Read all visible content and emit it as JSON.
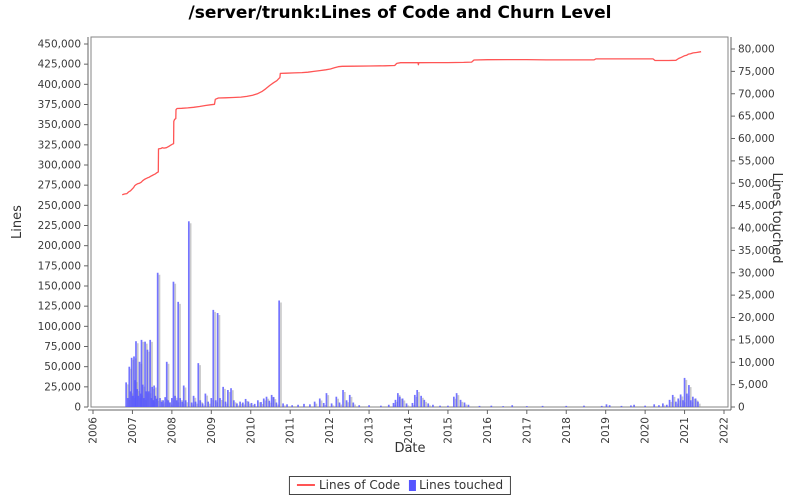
{
  "title": "/server/trunk:Lines of Code and Churn Level",
  "axis_titles": {
    "left": "Lines",
    "right": "Lines touched",
    "x": "Date"
  },
  "legend": {
    "items": [
      {
        "label": "Lines of Code",
        "swatch": "line",
        "color": "#ff5555"
      },
      {
        "label": "Lines touched",
        "swatch": "square",
        "color": "#5555ff"
      }
    ]
  },
  "colors": {
    "line": "#ff5555",
    "bar": "#5555ff",
    "bar_shadow": "#9e9e9e",
    "plot_border": "#848484",
    "axis_line": "#646464",
    "tick_text": "#3a3a3a"
  },
  "chart_data": {
    "type": "mixed-line-bar",
    "title": "/server/trunk:Lines of Code and Churn Level",
    "grid": false,
    "legend_position": "bottom-center",
    "x_axis": {
      "label": "Date",
      "range": [
        2005.95,
        2022.1
      ],
      "ticks": [
        2006,
        2007,
        2008,
        2009,
        2010,
        2011,
        2012,
        2013,
        2014,
        2015,
        2016,
        2017,
        2018,
        2019,
        2020,
        2021,
        2022
      ],
      "tick_rotation": -90
    },
    "left_axis": {
      "label": "Lines",
      "min": 0,
      "max": 450000,
      "step": 25000,
      "ticks": [
        0,
        25000,
        50000,
        75000,
        100000,
        125000,
        150000,
        175000,
        200000,
        225000,
        250000,
        275000,
        300000,
        325000,
        350000,
        375000,
        400000,
        425000,
        450000
      ]
    },
    "right_axis": {
      "label": "Lines touched",
      "min": 0,
      "max": 80000,
      "step": 5000,
      "ticks": [
        0,
        5000,
        10000,
        15000,
        20000,
        25000,
        30000,
        35000,
        40000,
        45000,
        50000,
        55000,
        60000,
        65000,
        70000,
        75000,
        80000
      ]
    },
    "series": [
      {
        "name": "Lines of Code",
        "type": "line",
        "axis": "left",
        "color": "#ff5555",
        "points": [
          [
            2006.74,
            263000
          ],
          [
            2006.8,
            264000
          ],
          [
            2006.86,
            264500
          ],
          [
            2006.9,
            266500
          ],
          [
            2006.95,
            268000
          ],
          [
            2007.0,
            270500
          ],
          [
            2007.03,
            272000
          ],
          [
            2007.06,
            274500
          ],
          [
            2007.1,
            276000
          ],
          [
            2007.14,
            277000
          ],
          [
            2007.18,
            277500
          ],
          [
            2007.22,
            278500
          ],
          [
            2007.26,
            280500
          ],
          [
            2007.3,
            282000
          ],
          [
            2007.34,
            283000
          ],
          [
            2007.38,
            284000
          ],
          [
            2007.42,
            284800
          ],
          [
            2007.46,
            286000
          ],
          [
            2007.5,
            287000
          ],
          [
            2007.54,
            288000
          ],
          [
            2007.58,
            289000
          ],
          [
            2007.62,
            290500
          ],
          [
            2007.655,
            291500
          ],
          [
            2007.66,
            320000
          ],
          [
            2007.72,
            320500
          ],
          [
            2007.76,
            321500
          ],
          [
            2007.8,
            321000
          ],
          [
            2007.86,
            321500
          ],
          [
            2007.92,
            323000
          ],
          [
            2007.97,
            324500
          ],
          [
            2008.02,
            326000
          ],
          [
            2008.045,
            326500
          ],
          [
            2008.05,
            354000
          ],
          [
            2008.07,
            356500
          ],
          [
            2008.1,
            357500
          ],
          [
            2008.105,
            368500
          ],
          [
            2008.13,
            370000
          ],
          [
            2008.25,
            370300
          ],
          [
            2008.4,
            370800
          ],
          [
            2008.55,
            371500
          ],
          [
            2008.7,
            372500
          ],
          [
            2008.85,
            373800
          ],
          [
            2009.0,
            374800
          ],
          [
            2009.08,
            375200
          ],
          [
            2009.1,
            381500
          ],
          [
            2009.18,
            383000
          ],
          [
            2009.35,
            383300
          ],
          [
            2009.55,
            383700
          ],
          [
            2009.75,
            384200
          ],
          [
            2009.9,
            385000
          ],
          [
            2010.05,
            386500
          ],
          [
            2010.18,
            388500
          ],
          [
            2010.28,
            391000
          ],
          [
            2010.38,
            394500
          ],
          [
            2010.48,
            398500
          ],
          [
            2010.58,
            402000
          ],
          [
            2010.66,
            404500
          ],
          [
            2010.72,
            407500
          ],
          [
            2010.74,
            408300
          ],
          [
            2010.75,
            413500
          ],
          [
            2010.9,
            413800
          ],
          [
            2011.1,
            414200
          ],
          [
            2011.3,
            414500
          ],
          [
            2011.45,
            415000
          ],
          [
            2011.6,
            416000
          ],
          [
            2011.75,
            417000
          ],
          [
            2011.9,
            418000
          ],
          [
            2012.02,
            419000
          ],
          [
            2012.12,
            420500
          ],
          [
            2012.22,
            421800
          ],
          [
            2012.32,
            422300
          ],
          [
            2012.6,
            422500
          ],
          [
            2013.0,
            422700
          ],
          [
            2013.4,
            423000
          ],
          [
            2013.65,
            423300
          ],
          [
            2013.7,
            426000
          ],
          [
            2013.8,
            426800
          ],
          [
            2014.24,
            426800
          ],
          [
            2014.25,
            424300
          ],
          [
            2014.26,
            426800
          ],
          [
            2014.6,
            426900
          ],
          [
            2015.0,
            427000
          ],
          [
            2015.4,
            427200
          ],
          [
            2015.6,
            427500
          ],
          [
            2015.66,
            430200
          ],
          [
            2016.0,
            430500
          ],
          [
            2016.5,
            430600
          ],
          [
            2017.0,
            430600
          ],
          [
            2017.5,
            430300
          ],
          [
            2018.0,
            430300
          ],
          [
            2018.7,
            430300
          ],
          [
            2018.75,
            431500
          ],
          [
            2019.5,
            431500
          ],
          [
            2020.2,
            431500
          ],
          [
            2020.25,
            429500
          ],
          [
            2020.6,
            429500
          ],
          [
            2020.78,
            429800
          ],
          [
            2020.85,
            432000
          ],
          [
            2020.92,
            433500
          ],
          [
            2021.0,
            435500
          ],
          [
            2021.05,
            436000
          ],
          [
            2021.1,
            437500
          ],
          [
            2021.15,
            438000
          ],
          [
            2021.22,
            439000
          ],
          [
            2021.3,
            439500
          ],
          [
            2021.42,
            440500
          ]
        ]
      },
      {
        "name": "Lines touched",
        "type": "bar",
        "axis": "right",
        "color": "#5555ff",
        "points": [
          [
            2006.84,
            5500
          ],
          [
            2006.88,
            2000
          ],
          [
            2006.92,
            9000
          ],
          [
            2006.95,
            3500
          ],
          [
            2006.98,
            11000
          ],
          [
            2007.01,
            2500
          ],
          [
            2007.04,
            11300
          ],
          [
            2007.07,
            6000
          ],
          [
            2007.09,
            14700
          ],
          [
            2007.12,
            4000
          ],
          [
            2007.15,
            2500
          ],
          [
            2007.18,
            10100
          ],
          [
            2007.21,
            3000
          ],
          [
            2007.23,
            15000
          ],
          [
            2007.26,
            5000
          ],
          [
            2007.29,
            2000
          ],
          [
            2007.32,
            14600
          ],
          [
            2007.35,
            3500
          ],
          [
            2007.38,
            12800
          ],
          [
            2007.41,
            3500
          ],
          [
            2007.45,
            15000
          ],
          [
            2007.48,
            2000
          ],
          [
            2007.5,
            4500
          ],
          [
            2007.53,
            1500
          ],
          [
            2007.55,
            4800
          ],
          [
            2007.58,
            2500
          ],
          [
            2007.61,
            1800
          ],
          [
            2007.64,
            30000
          ],
          [
            2007.7,
            2000
          ],
          [
            2007.74,
            1200
          ],
          [
            2007.78,
            1500
          ],
          [
            2007.83,
            2200
          ],
          [
            2007.87,
            10100
          ],
          [
            2007.91,
            1500
          ],
          [
            2007.95,
            1000
          ],
          [
            2008.0,
            2000
          ],
          [
            2008.04,
            28000
          ],
          [
            2008.08,
            2500
          ],
          [
            2008.12,
            1500
          ],
          [
            2008.16,
            23500
          ],
          [
            2008.21,
            2000
          ],
          [
            2008.26,
            1200
          ],
          [
            2008.3,
            4800
          ],
          [
            2008.35,
            1500
          ],
          [
            2008.43,
            41500
          ],
          [
            2008.5,
            1000
          ],
          [
            2008.55,
            2500
          ],
          [
            2008.6,
            1200
          ],
          [
            2008.67,
            9800
          ],
          [
            2008.72,
            1500
          ],
          [
            2008.78,
            800
          ],
          [
            2008.85,
            3000
          ],
          [
            2008.92,
            1200
          ],
          [
            2009.0,
            2000
          ],
          [
            2009.05,
            21700
          ],
          [
            2009.11,
            1500
          ],
          [
            2009.16,
            21000
          ],
          [
            2009.22,
            2000
          ],
          [
            2009.3,
            4500
          ],
          [
            2009.36,
            1200
          ],
          [
            2009.42,
            3800
          ],
          [
            2009.5,
            4200
          ],
          [
            2009.57,
            1500
          ],
          [
            2009.65,
            800
          ],
          [
            2009.73,
            1200
          ],
          [
            2009.8,
            1000
          ],
          [
            2009.87,
            1800
          ],
          [
            2009.94,
            1200
          ],
          [
            2010.02,
            900
          ],
          [
            2010.1,
            700
          ],
          [
            2010.18,
            1500
          ],
          [
            2010.26,
            1100
          ],
          [
            2010.33,
            1900
          ],
          [
            2010.4,
            2300
          ],
          [
            2010.47,
            1400
          ],
          [
            2010.53,
            2700
          ],
          [
            2010.58,
            2200
          ],
          [
            2010.65,
            1000
          ],
          [
            2010.72,
            23800
          ],
          [
            2010.82,
            800
          ],
          [
            2010.92,
            600
          ],
          [
            2011.05,
            400
          ],
          [
            2011.2,
            500
          ],
          [
            2011.35,
            700
          ],
          [
            2011.5,
            600
          ],
          [
            2011.62,
            1200
          ],
          [
            2011.75,
            1900
          ],
          [
            2011.85,
            900
          ],
          [
            2011.92,
            3100
          ],
          [
            2012.05,
            800
          ],
          [
            2012.17,
            2300
          ],
          [
            2012.25,
            1000
          ],
          [
            2012.34,
            3800
          ],
          [
            2012.43,
            1500
          ],
          [
            2012.51,
            2700
          ],
          [
            2012.6,
            1000
          ],
          [
            2012.75,
            400
          ],
          [
            2013.0,
            400
          ],
          [
            2013.3,
            300
          ],
          [
            2013.5,
            500
          ],
          [
            2013.62,
            900
          ],
          [
            2013.67,
            1600
          ],
          [
            2013.73,
            3100
          ],
          [
            2013.78,
            2300
          ],
          [
            2013.85,
            1900
          ],
          [
            2013.95,
            800
          ],
          [
            2014.1,
            900
          ],
          [
            2014.16,
            2700
          ],
          [
            2014.22,
            3800
          ],
          [
            2014.32,
            2500
          ],
          [
            2014.4,
            1600
          ],
          [
            2014.5,
            800
          ],
          [
            2014.62,
            500
          ],
          [
            2014.8,
            300
          ],
          [
            2015.0,
            300
          ],
          [
            2015.15,
            2300
          ],
          [
            2015.22,
            3100
          ],
          [
            2015.32,
            1600
          ],
          [
            2015.42,
            1000
          ],
          [
            2015.52,
            500
          ],
          [
            2015.8,
            250
          ],
          [
            2016.1,
            300
          ],
          [
            2016.4,
            200
          ],
          [
            2016.63,
            400
          ],
          [
            2017.0,
            200
          ],
          [
            2017.4,
            250
          ],
          [
            2018.0,
            250
          ],
          [
            2018.45,
            300
          ],
          [
            2018.9,
            250
          ],
          [
            2019.02,
            600
          ],
          [
            2019.1,
            400
          ],
          [
            2019.4,
            250
          ],
          [
            2019.64,
            350
          ],
          [
            2019.72,
            500
          ],
          [
            2020.0,
            300
          ],
          [
            2020.23,
            600
          ],
          [
            2020.35,
            400
          ],
          [
            2020.45,
            800
          ],
          [
            2020.55,
            500
          ],
          [
            2020.62,
            1600
          ],
          [
            2020.7,
            2700
          ],
          [
            2020.78,
            1200
          ],
          [
            2020.84,
            1900
          ],
          [
            2020.9,
            2800
          ],
          [
            2020.96,
            1500
          ],
          [
            2021.0,
            6500
          ],
          [
            2021.06,
            3000
          ],
          [
            2021.11,
            4900
          ],
          [
            2021.16,
            1500
          ],
          [
            2021.21,
            2300
          ],
          [
            2021.28,
            1900
          ],
          [
            2021.34,
            1200
          ]
        ]
      }
    ]
  }
}
